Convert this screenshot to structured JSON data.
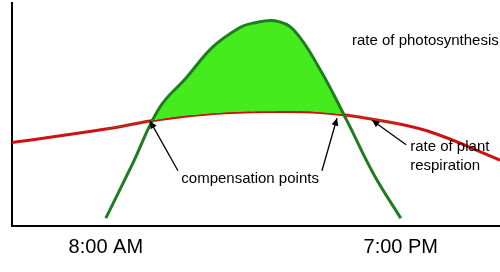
{
  "chart_data": {
    "type": "line",
    "series": [
      {
        "name": "rate of photosynthesis",
        "color": "#1e7d1e",
        "x": [
          8,
          9,
          10,
          11,
          12,
          13,
          13.5,
          14.3,
          15,
          16,
          17,
          18,
          19
        ],
        "values": [
          3.5,
          28,
          53,
          66.5,
          80.4,
          89,
          91,
          92,
          88,
          70,
          47,
          23,
          3.5
        ]
      },
      {
        "name": "rate of plant respiration",
        "color": "#cc1111",
        "x": [
          4.5,
          8,
          10,
          12,
          14,
          16,
          18,
          20,
          22.7
        ],
        "values": [
          37.4,
          43.5,
          47.8,
          50.4,
          51.3,
          50.9,
          47.8,
          42.6,
          29.6
        ]
      }
    ],
    "annotations": [
      "compensation points"
    ],
    "xlim": [
      4.5,
      22.7
    ],
    "xticks": [
      {
        "value": 8,
        "label": "8:00 AM"
      },
      {
        "value": 19,
        "label": "7:00 PM"
      }
    ],
    "ylim": [
      0,
      100
    ],
    "grid": false,
    "tick_labels": "x"
  }
}
